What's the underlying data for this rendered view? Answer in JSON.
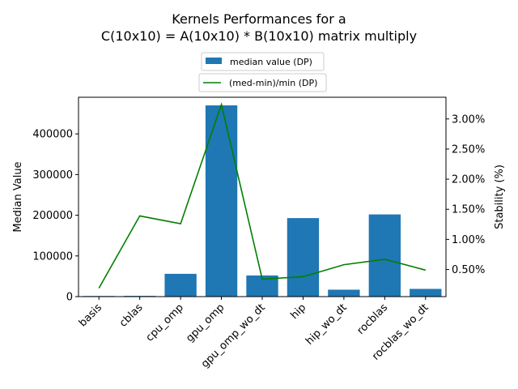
{
  "chart_data": {
    "type": "bar",
    "title_lines": [
      "Kernels Performances for a",
      "C(10x10) = A(10x10) * B(10x10) matrix multiply"
    ],
    "categories": [
      "basis",
      "cblas",
      "cpu_omp",
      "gpu_omp",
      "gpu_omp_wo_dt",
      "hip",
      "hip_wo_dt",
      "rocblas",
      "rocblas_wo_dt"
    ],
    "series": [
      {
        "name": "median value (DP)",
        "kind": "bar",
        "axis": "left",
        "color": "#1f77b4",
        "values": [
          1500,
          1800,
          56000,
          470000,
          52000,
          193000,
          17000,
          202000,
          19000
        ]
      },
      {
        "name": "(med-min)/min (DP)",
        "kind": "line",
        "axis": "right",
        "color": "#008000",
        "values": [
          0.19,
          1.39,
          1.26,
          3.24,
          0.34,
          0.38,
          0.58,
          0.67,
          0.49
        ]
      }
    ],
    "ylabel": "Median Value",
    "ylabel_right": "Stability (%)",
    "ylim": [
      0,
      490000
    ],
    "ylim_right": [
      0.05,
      3.36
    ],
    "yticks": [
      0,
      100000,
      200000,
      300000,
      400000
    ],
    "yticks_right": [
      0.5,
      1.0,
      1.5,
      2.0,
      2.5,
      3.0
    ],
    "yticks_right_labels": [
      "0.50%",
      "1.00%",
      "1.50%",
      "2.00%",
      "2.50%",
      "3.00%"
    ],
    "legend_placement": "top-center",
    "grid": false
  }
}
